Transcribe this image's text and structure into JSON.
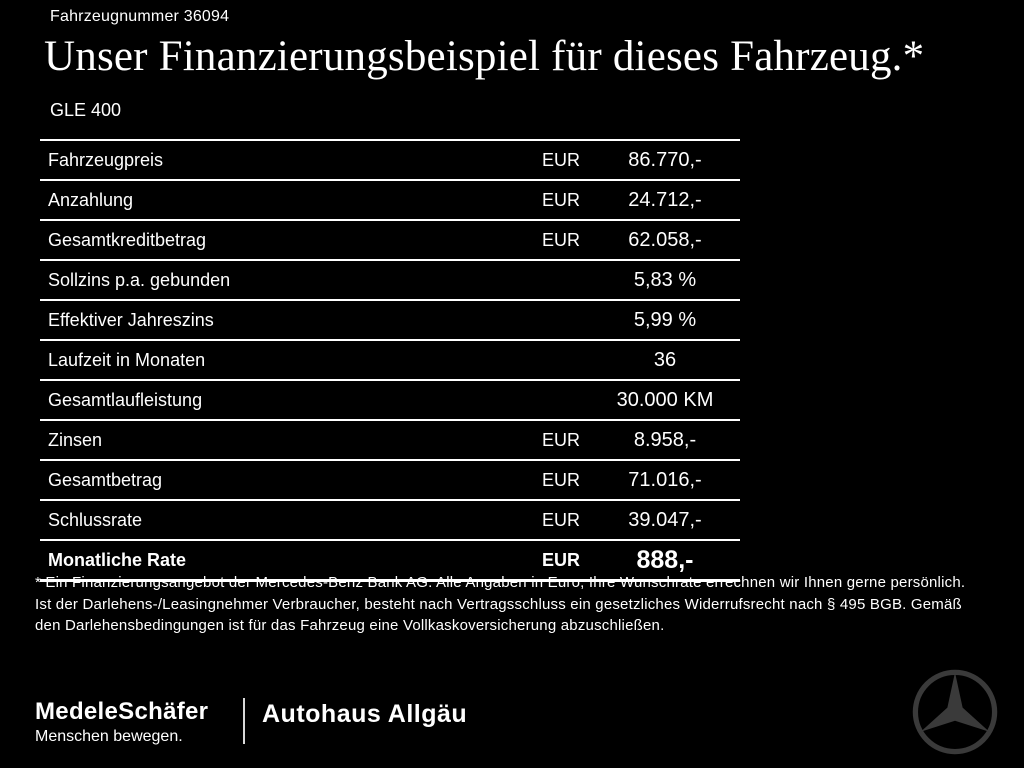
{
  "header": {
    "vehicle_number": "Fahrzeugnummer 36094",
    "title": "Unser Finanzierungsbeispiel für dieses Fahrzeug.*",
    "model": "GLE 400"
  },
  "table": {
    "rows": [
      {
        "label": "Fahrzeugpreis",
        "currency": "EUR",
        "value": "86.770,-",
        "emphasis": false
      },
      {
        "label": "Anzahlung",
        "currency": "EUR",
        "value": "24.712,-",
        "emphasis": false
      },
      {
        "label": "Gesamtkreditbetrag",
        "currency": "EUR",
        "value": "62.058,-",
        "emphasis": false
      },
      {
        "label": "Sollzins p.a. gebunden",
        "currency": "",
        "value": "5,83 %",
        "emphasis": false
      },
      {
        "label": "Effektiver Jahreszins",
        "currency": "",
        "value": "5,99 %",
        "emphasis": false
      },
      {
        "label": "Laufzeit in Monaten",
        "currency": "",
        "value": "36",
        "emphasis": false
      },
      {
        "label": "Gesamtlaufleistung",
        "currency": "",
        "value": "30.000 KM",
        "emphasis": false
      },
      {
        "label": "Zinsen",
        "currency": "EUR",
        "value": "8.958,-",
        "emphasis": false
      },
      {
        "label": "Gesamtbetrag",
        "currency": "EUR",
        "value": "71.016,-",
        "emphasis": false
      },
      {
        "label": "Schlussrate",
        "currency": "EUR",
        "value": "39.047,-",
        "emphasis": false
      },
      {
        "label": "Monatliche Rate",
        "currency": "EUR",
        "value": "888,-",
        "emphasis": true
      }
    ]
  },
  "footnote": "* Ein Finanzierungsangebot der Mercedes-Benz Bank AG. Alle Angaben in Euro, Ihre Wunschrate errechnen wir Ihnen gerne persönlich. Ist der Darlehens-/Leasingnehmer Verbraucher, besteht nach Vertragsschluss ein gesetzliches Widerrufsrecht nach § 495 BGB. Gemäß den Darlehensbedingungen ist für das Fahrzeug eine Vollkaskoversicherung abzuschließen.",
  "footer": {
    "dealer1": "MedeleSchäfer",
    "tagline": "Menschen bewegen.",
    "dealer2": "Autohaus Allgäu",
    "brand_icon": "mercedes-star-icon"
  },
  "colors": {
    "background": "#000000",
    "text": "#ffffff",
    "rule": "#ffffff",
    "star": "#3a3a3a"
  }
}
